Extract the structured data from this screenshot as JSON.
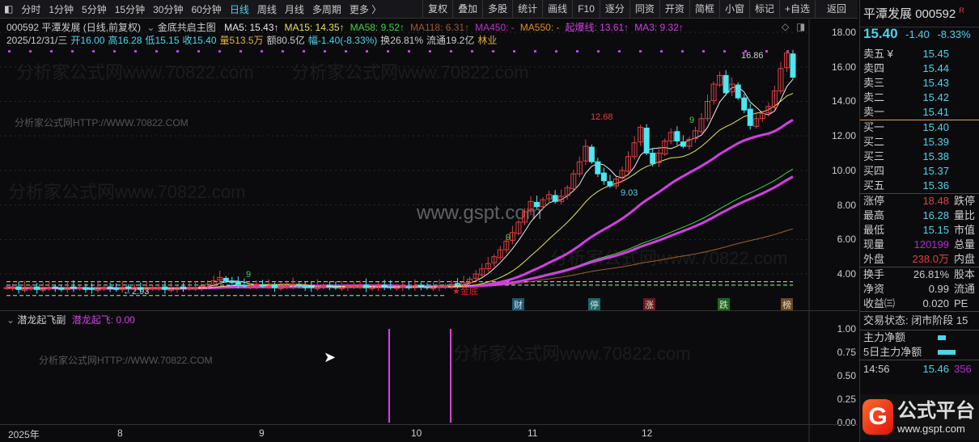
{
  "toolbar": {
    "periods": [
      "分时",
      "1分钟",
      "5分钟",
      "15分钟",
      "30分钟",
      "60分钟",
      "日线",
      "周线",
      "月线",
      "多周期",
      "更多 〉"
    ],
    "active": "日线",
    "actions": [
      "复权",
      "叠加",
      "多股",
      "统计",
      "画线",
      "F10",
      "逐分",
      "同资",
      "开资",
      "简框",
      "小窗",
      "标记",
      "+自选"
    ],
    "back": "返回"
  },
  "header": {
    "title": "000592 平潭发展 (日线,前复权)",
    "indicator": "金底共启主图",
    "ma": [
      {
        "t": "MA5: 15.43↑",
        "c": "#e8e8e8"
      },
      {
        "t": "MA15: 14.35↑",
        "c": "#e6e05a"
      },
      {
        "t": "MA58: 9.52↑",
        "c": "#46d046"
      },
      {
        "t": "MA118: 6.31↑",
        "c": "#9a5a2a"
      },
      {
        "t": "MA450: -",
        "c": "#c030d0"
      },
      {
        "t": "MA550: -",
        "c": "#e08a30"
      },
      {
        "t": "起爆线: 13.61↑",
        "c": "#d040e0"
      },
      {
        "t": "MA3: 9.32↑",
        "c": "#d040e0"
      }
    ],
    "line2": [
      {
        "t": "2025/12/31/三",
        "c": "#ccc"
      },
      {
        "t": "开16.00",
        "c": "#4fd3e6"
      },
      {
        "t": "高16.28",
        "c": "#4fd3e6"
      },
      {
        "t": "低15.15",
        "c": "#4fd3e6"
      },
      {
        "t": "收15.40",
        "c": "#4fd3e6"
      },
      {
        "t": "量513.5万",
        "c": "#e0b040"
      },
      {
        "t": "额80.5亿",
        "c": "#ccc"
      },
      {
        "t": "幅-1.40(-8.33%)",
        "c": "#4fd3e6"
      },
      {
        "t": "换26.81%",
        "c": "#ccc"
      },
      {
        "t": "流通19.2亿",
        "c": "#ccc"
      },
      {
        "t": "林业",
        "c": "#e0b040"
      }
    ]
  },
  "quote": {
    "name": "平潭发展",
    "code": "000592",
    "badge": "R",
    "price": "15.40",
    "change": "-1.40",
    "pct": "-8.33%",
    "sell": [
      [
        "卖五 ¥",
        "15.45"
      ],
      [
        "卖四",
        "15.44"
      ],
      [
        "卖三",
        "15.43"
      ],
      [
        "卖二",
        "15.42"
      ],
      [
        "卖一",
        "15.41"
      ]
    ],
    "buy": [
      [
        "买一",
        "15.40"
      ],
      [
        "买二",
        "15.39"
      ],
      [
        "买三",
        "15.38"
      ],
      [
        "买四",
        "15.37"
      ],
      [
        "买五",
        "15.36"
      ]
    ],
    "stats": [
      [
        "涨停",
        "18.48",
        "rd",
        "跌停"
      ],
      [
        "最高",
        "16.28",
        "cy",
        "量比"
      ],
      [
        "最低",
        "15.15",
        "cy",
        "市值"
      ],
      [
        "现量",
        "120199",
        "pu",
        "总量"
      ],
      [
        "外盘",
        "238.0万",
        "rd",
        "内盘"
      ]
    ],
    "stats2": [
      [
        "换手",
        "26.81%",
        "股本"
      ],
      [
        "净资",
        "0.99",
        "流通"
      ],
      [
        "收益㈢",
        "0.020",
        "PE"
      ]
    ],
    "status": "交易状态: 闭市阶段 15",
    "main_net": "主力净额",
    "net5": "5日主力净额",
    "tick": {
      "time": "14:56",
      "price": "15.46",
      "vol": "356"
    }
  },
  "price_axis": [
    "18.00",
    "16.00",
    "14.00",
    "12.00",
    "10.00",
    "8.00",
    "6.00",
    "4.00"
  ],
  "sub_axis": [
    "1.00",
    "0.75",
    "0.50",
    "0.25",
    "0.00"
  ],
  "x_axis": [
    "2025年",
    "8",
    "9",
    "10",
    "11",
    "12"
  ],
  "sub": {
    "title": "潜龙起飞副",
    "value": "潜龙起飞: 0.00"
  },
  "annotations": {
    "high": "16.86",
    "mid_high": "12.68",
    "mid_low": "9.03",
    "low": "←2.93",
    "nine": "9",
    "jindi": "★金底",
    "events": [
      "财",
      "停",
      "涨",
      "跌",
      "榜"
    ]
  },
  "watermarks": {
    "site": "分析家公式网HTTP://WWW.70822.COM",
    "gspt": "www.gspt.com",
    "wm": "分析家公式网www.70822.com"
  },
  "logo": {
    "name": "公式平台",
    "url": "www.gspt.com"
  },
  "chart_data": {
    "type": "candlestick",
    "price_range": [
      4,
      18
    ],
    "closes": [
      3.2,
      3.2,
      3.1,
      3.2,
      3.2,
      3.1,
      3.2,
      3.2,
      3.2,
      3.1,
      3.2,
      3.2,
      3.2,
      3.1,
      3.1,
      3.2,
      3.2,
      3.2,
      3.1,
      3.2,
      3.2,
      3.2,
      3.1,
      3.2,
      3.2,
      3.2,
      3.1,
      3.1,
      3.2,
      3.2,
      3.2,
      3.2,
      3.3,
      3.4,
      3.6,
      3.8,
      3.6,
      3.5,
      3.4,
      3.3,
      3.3,
      3.4,
      3.3,
      3.3,
      3.2,
      3.3,
      3.3,
      3.4,
      3.3,
      3.2,
      3.2,
      3.3,
      3.3,
      3.3,
      3.2,
      3.2,
      3.3,
      3.3,
      3.3,
      3.2,
      3.2,
      3.3,
      3.3,
      3.2,
      3.2,
      3.3,
      3.2,
      3.3,
      3.3,
      3.2,
      3.2,
      3.3,
      3.3,
      3.4,
      3.4,
      3.5,
      3.7,
      4.0,
      4.3,
      4.6,
      5.0,
      5.4,
      5.9,
      6.4,
      7.0,
      7.6,
      8.2,
      7.9,
      8.3,
      8.6,
      8.2,
      8.5,
      9.0,
      9.8,
      10.5,
      11.4,
      10.5,
      9.8,
      9.4,
      9.1,
      9.5,
      10.0,
      10.8,
      11.6,
      12.5,
      11.0,
      10.4,
      11.0,
      11.7,
      12.2,
      11.7,
      11.4,
      11.8,
      12.3,
      13.0,
      14.0,
      15.0,
      15.5,
      14.5,
      15.0,
      14.2,
      13.5,
      12.6,
      13.0,
      13.3,
      13.7,
      14.6,
      15.9,
      16.8,
      15.4
    ],
    "sub_signals": [
      {
        "date_index": 99,
        "value": 1.0
      },
      {
        "date_index": 109,
        "value": 1.0
      }
    ]
  }
}
